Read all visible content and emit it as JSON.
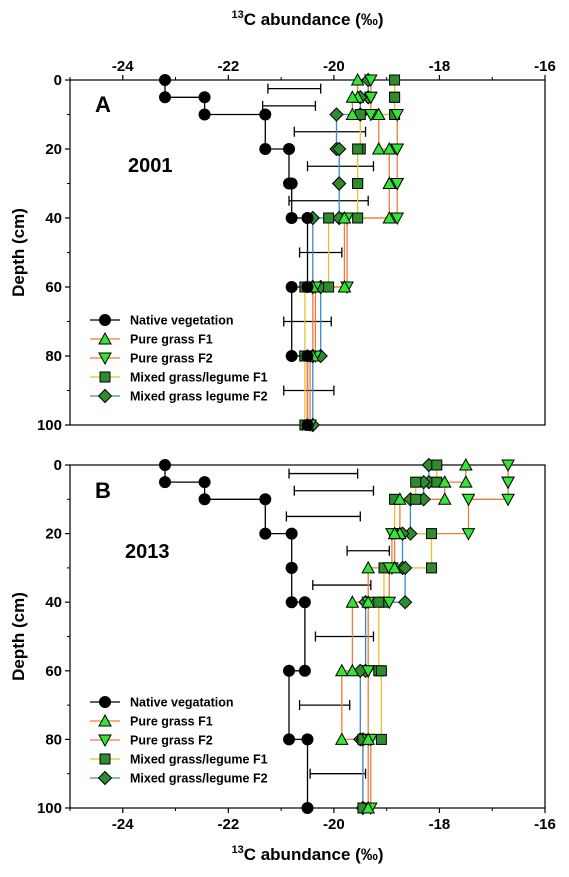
{
  "chart_data": [
    {
      "type": "line",
      "panel": "A",
      "year": "2001",
      "xlabel_sup": "13",
      "xlabel": "C abundance (‰)",
      "ylabel": "Depth (cm)",
      "xlim": [
        -25,
        -16
      ],
      "ylim": [
        0,
        100
      ],
      "y_inverted": true,
      "x_axis_position": "top",
      "xticks": [
        -24,
        -22,
        -20,
        -18,
        -16
      ],
      "yticks": [
        0,
        20,
        40,
        60,
        80,
        100
      ],
      "legend_position": "bottom-left",
      "series": [
        {
          "name": "Native vegetation",
          "marker": "circle",
          "color": "#000000",
          "line_color": "#000000",
          "points": [
            [
              -23.2,
              0
            ],
            [
              -23.2,
              5
            ],
            [
              -22.45,
              5
            ],
            [
              -22.45,
              10
            ],
            [
              -21.3,
              10
            ],
            [
              -21.3,
              20
            ],
            [
              -20.85,
              20
            ],
            [
              -20.85,
              30
            ],
            [
              -20.8,
              30
            ],
            [
              -20.8,
              40
            ],
            [
              -20.5,
              40
            ],
            [
              -20.5,
              60
            ],
            [
              -20.8,
              60
            ],
            [
              -20.8,
              80
            ],
            [
              -20.5,
              80
            ],
            [
              -20.5,
              100
            ]
          ]
        },
        {
          "name": "Pure grass F1",
          "marker": "triangle-up",
          "color": "#33e633",
          "line_color": "#f07b3f",
          "points": [
            [
              -19.55,
              0
            ],
            [
              -19.55,
              5
            ],
            [
              -19.65,
              5
            ],
            [
              -19.65,
              10
            ],
            [
              -19.15,
              10
            ],
            [
              -19.15,
              20
            ],
            [
              -18.95,
              20
            ],
            [
              -18.95,
              30
            ],
            [
              -18.95,
              30
            ],
            [
              -18.95,
              40
            ],
            [
              -19.8,
              40
            ],
            [
              -19.8,
              60
            ],
            [
              -20.4,
              60
            ],
            [
              -20.4,
              80
            ],
            [
              -20.5,
              80
            ],
            [
              -20.5,
              100
            ]
          ]
        },
        {
          "name": "Pure grass F2",
          "marker": "triangle-down",
          "color": "#33e633",
          "line_color": "#f07b3f",
          "points": [
            [
              -19.3,
              0
            ],
            [
              -19.3,
              5
            ],
            [
              -19.3,
              5
            ],
            [
              -19.3,
              10
            ],
            [
              -18.8,
              10
            ],
            [
              -18.8,
              20
            ],
            [
              -18.8,
              20
            ],
            [
              -18.8,
              30
            ],
            [
              -18.8,
              30
            ],
            [
              -18.8,
              40
            ],
            [
              -19.75,
              40
            ],
            [
              -19.75,
              60
            ],
            [
              -20.35,
              60
            ],
            [
              -20.35,
              80
            ],
            [
              -20.45,
              80
            ],
            [
              -20.45,
              100
            ]
          ]
        },
        {
          "name": "Mixed grass/legume F1",
          "marker": "square",
          "color": "#2e8b2e",
          "line_color": "#e6c229",
          "points": [
            [
              -18.85,
              0
            ],
            [
              -18.85,
              5
            ],
            [
              -18.85,
              5
            ],
            [
              -18.85,
              10
            ],
            [
              -19.5,
              10
            ],
            [
              -19.5,
              20
            ],
            [
              -19.55,
              20
            ],
            [
              -19.55,
              30
            ],
            [
              -19.55,
              30
            ],
            [
              -19.55,
              40
            ],
            [
              -20.1,
              40
            ],
            [
              -20.1,
              60
            ],
            [
              -20.55,
              60
            ],
            [
              -20.55,
              80
            ],
            [
              -20.55,
              80
            ],
            [
              -20.55,
              100
            ]
          ]
        },
        {
          "name": "Mixed grass legume F2",
          "marker": "diamond",
          "color": "#2e8b2e",
          "line_color": "#3b86d6",
          "points": [
            [
              -19.35,
              0
            ],
            [
              -19.35,
              5
            ],
            [
              -19.5,
              5
            ],
            [
              -19.5,
              10
            ],
            [
              -19.95,
              10
            ],
            [
              -19.95,
              20
            ],
            [
              -19.9,
              20
            ],
            [
              -19.9,
              30
            ],
            [
              -19.9,
              30
            ],
            [
              -19.9,
              40
            ],
            [
              -20.4,
              40
            ],
            [
              -20.4,
              60
            ],
            [
              -20.25,
              60
            ],
            [
              -20.25,
              80
            ],
            [
              -20.4,
              80
            ],
            [
              -20.4,
              100
            ]
          ]
        }
      ],
      "error_bars": [
        {
          "y": 2.5,
          "x_low": -21.25,
          "x_high": -20.25
        },
        {
          "y": 7.5,
          "x_low": -21.35,
          "x_high": -20.35
        },
        {
          "y": 15,
          "x_low": -20.75,
          "x_high": -19.4
        },
        {
          "y": 25,
          "x_low": -20.5,
          "x_high": -19.25
        },
        {
          "y": 35,
          "x_low": -20.85,
          "x_high": -19.35
        },
        {
          "y": 50,
          "x_low": -20.65,
          "x_high": -19.85
        },
        {
          "y": 70,
          "x_low": -20.95,
          "x_high": -20.05
        },
        {
          "y": 90,
          "x_low": -20.95,
          "x_high": -20.0
        }
      ]
    },
    {
      "type": "line",
      "panel": "B",
      "year": "2013",
      "xlabel_sup": "13",
      "xlabel": "C abundance (‰)",
      "ylabel": "Depth (cm)",
      "xlim": [
        -25,
        -16
      ],
      "ylim": [
        0,
        100
      ],
      "y_inverted": true,
      "x_axis_position": "bottom",
      "xticks": [
        -24,
        -22,
        -20,
        -18,
        -16
      ],
      "yticks": [
        0,
        20,
        40,
        60,
        80,
        100
      ],
      "legend_position": "bottom-left",
      "series": [
        {
          "name": "Native vegatation",
          "marker": "circle",
          "color": "#000000",
          "line_color": "#000000",
          "points": [
            [
              -23.2,
              0
            ],
            [
              -23.2,
              5
            ],
            [
              -22.45,
              5
            ],
            [
              -22.45,
              10
            ],
            [
              -21.3,
              10
            ],
            [
              -21.3,
              20
            ],
            [
              -20.8,
              20
            ],
            [
              -20.8,
              30
            ],
            [
              -20.8,
              30
            ],
            [
              -20.8,
              40
            ],
            [
              -20.55,
              40
            ],
            [
              -20.55,
              60
            ],
            [
              -20.85,
              60
            ],
            [
              -20.85,
              80
            ],
            [
              -20.5,
              80
            ],
            [
              -20.5,
              100
            ]
          ]
        },
        {
          "name": "Pure grass F1",
          "marker": "triangle-up",
          "color": "#33e633",
          "line_color": "#f07b3f",
          "points": [
            [
              -17.5,
              0
            ],
            [
              -17.5,
              5
            ],
            [
              -17.9,
              5
            ],
            [
              -17.9,
              10
            ],
            [
              -18.75,
              10
            ],
            [
              -18.75,
              20
            ],
            [
              -18.85,
              20
            ],
            [
              -18.85,
              30
            ],
            [
              -19.35,
              30
            ],
            [
              -19.35,
              40
            ],
            [
              -19.65,
              40
            ],
            [
              -19.65,
              60
            ],
            [
              -19.85,
              60
            ],
            [
              -19.85,
              80
            ],
            [
              -19.35,
              80
            ],
            [
              -19.35,
              100
            ]
          ]
        },
        {
          "name": "Pure grass F2",
          "marker": "triangle-down",
          "color": "#33e633",
          "line_color": "#f07b3f",
          "points": [
            [
              -16.7,
              0
            ],
            [
              -16.7,
              5
            ],
            [
              -16.7,
              5
            ],
            [
              -16.7,
              10
            ],
            [
              -17.45,
              10
            ],
            [
              -17.45,
              20
            ],
            [
              -18.9,
              20
            ],
            [
              -18.9,
              30
            ],
            [
              -18.95,
              30
            ],
            [
              -18.95,
              40
            ],
            [
              -19.35,
              40
            ],
            [
              -19.35,
              60
            ],
            [
              -19.35,
              60
            ],
            [
              -19.35,
              80
            ],
            [
              -19.3,
              80
            ],
            [
              -19.3,
              100
            ]
          ]
        },
        {
          "name": "Mixed grass/legume F1",
          "marker": "square",
          "color": "#2e8b2e",
          "line_color": "#e6c229",
          "points": [
            [
              -18.05,
              0
            ],
            [
              -18.05,
              5
            ],
            [
              -18.45,
              5
            ],
            [
              -18.45,
              10
            ],
            [
              -18.85,
              10
            ],
            [
              -18.85,
              20
            ],
            [
              -18.15,
              20
            ],
            [
              -18.15,
              30
            ],
            [
              -19.05,
              30
            ],
            [
              -19.05,
              40
            ],
            [
              -19.15,
              40
            ],
            [
              -19.15,
              60
            ],
            [
              -19.1,
              60
            ],
            [
              -19.1,
              80
            ],
            [
              -19.45,
              80
            ],
            [
              -19.45,
              100
            ]
          ]
        },
        {
          "name": "Mixed grass/legume F2",
          "marker": "diamond",
          "color": "#2e8b2e",
          "line_color": "#3b86d6",
          "points": [
            [
              -18.2,
              0
            ],
            [
              -18.2,
              5
            ],
            [
              -18.3,
              5
            ],
            [
              -18.3,
              10
            ],
            [
              -18.55,
              10
            ],
            [
              -18.55,
              20
            ],
            [
              -18.7,
              20
            ],
            [
              -18.7,
              30
            ],
            [
              -18.65,
              30
            ],
            [
              -18.65,
              40
            ],
            [
              -19.4,
              40
            ],
            [
              -19.4,
              60
            ],
            [
              -19.5,
              60
            ],
            [
              -19.5,
              80
            ],
            [
              -19.45,
              80
            ],
            [
              -19.45,
              100
            ]
          ]
        }
      ],
      "error_bars": [
        {
          "y": 2.5,
          "x_low": -20.85,
          "x_high": -19.55
        },
        {
          "y": 7.5,
          "x_low": -20.75,
          "x_high": -19.25
        },
        {
          "y": 15,
          "x_low": -20.9,
          "x_high": -19.5
        },
        {
          "y": 25,
          "x_low": -19.75,
          "x_high": -18.95
        },
        {
          "y": 35,
          "x_low": -20.4,
          "x_high": -19.3
        },
        {
          "y": 50,
          "x_low": -20.35,
          "x_high": -19.25
        },
        {
          "y": 70,
          "x_low": -20.65,
          "x_high": -19.7
        },
        {
          "y": 90,
          "x_low": -20.45,
          "x_high": -19.4
        }
      ]
    }
  ]
}
